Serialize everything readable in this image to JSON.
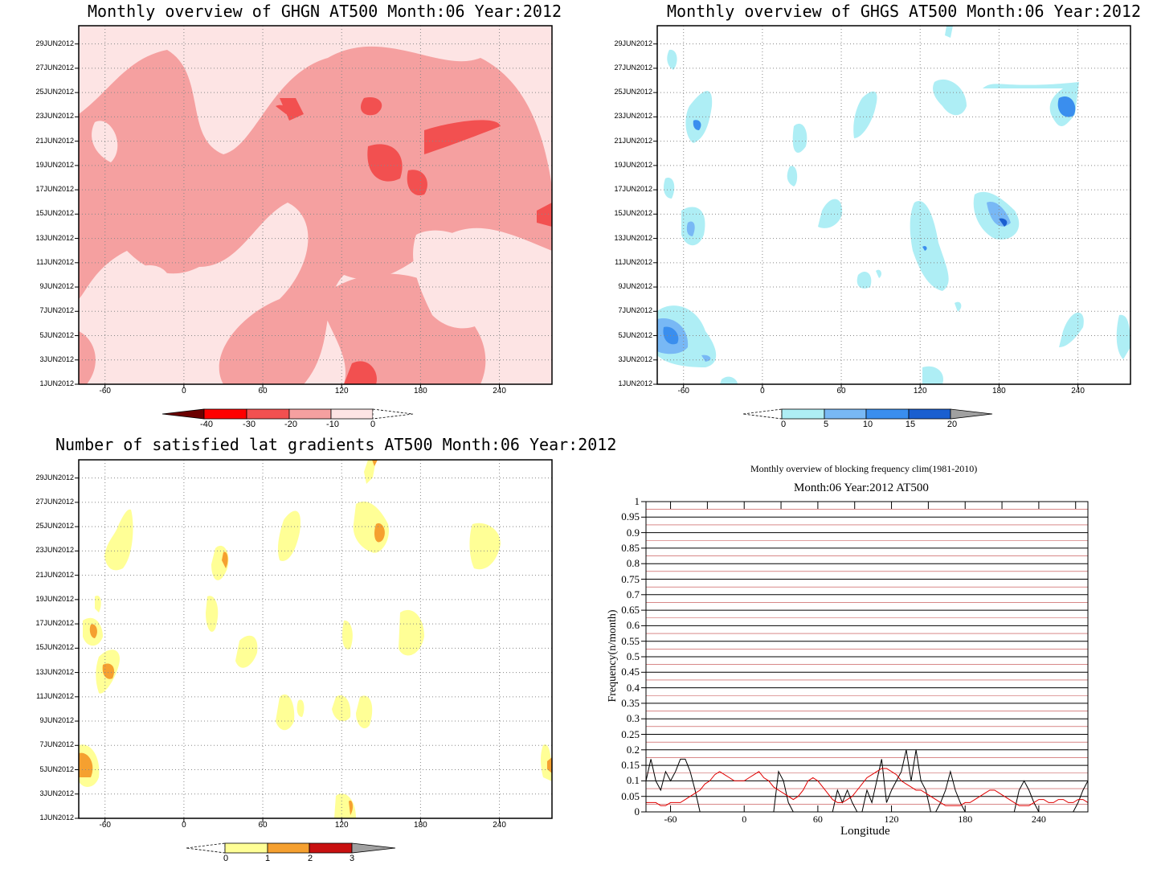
{
  "panels": {
    "ghgn": {
      "title": "Monthly overview of GHGN AT500 Month:06 Year:2012",
      "colorbar": {
        "ticks": [
          "-40",
          "-30",
          "-20",
          "-10",
          "0"
        ],
        "colors": [
          "#6b0000",
          "#ff0000",
          "#f25050",
          "#f5a0a0",
          "#fde4e4"
        ]
      }
    },
    "ghgs": {
      "title": "Monthly overview of GHGS AT500 Month:06 Year:2012",
      "colorbar": {
        "ticks": [
          "0",
          "5",
          "10",
          "15",
          "20"
        ],
        "colors": [
          "#aeeef5",
          "#78b8f5",
          "#3a8eee",
          "#1a5fd0",
          "#a0a0a0"
        ]
      }
    },
    "gradients": {
      "title": "Number of satisfied lat gradients AT500 Month:06 Year:2012",
      "colorbar": {
        "ticks": [
          "0",
          "1",
          "2",
          "3"
        ],
        "colors": [
          "#ffff96",
          "#f5a030",
          "#c81010",
          "#a0a0a0"
        ]
      }
    }
  },
  "shared_axes": {
    "y_dates": [
      "1JUN2012",
      "3JUN2012",
      "5JUN2012",
      "7JUN2012",
      "9JUN2012",
      "11JUN2012",
      "13JUN2012",
      "15JUN2012",
      "17JUN2012",
      "19JUN2012",
      "21JUN2012",
      "23JUN2012",
      "25JUN2012",
      "27JUN2012",
      "29JUN2012"
    ],
    "x_lons": [
      "-60",
      "0",
      "60",
      "120",
      "180",
      "240"
    ]
  },
  "freq": {
    "title": "Monthly overview of blocking frequency clim(1981-2010)",
    "subtitle": "Month:06 Year:2012  AT500",
    "xlabel": "Longitude",
    "ylabel": "Frequency(n/month)",
    "yticks": [
      "0",
      "0.05",
      "0.1",
      "0.15",
      "0.2",
      "0.25",
      "0.3",
      "0.35",
      "0.4",
      "0.45",
      "0.5",
      "0.55",
      "0.6",
      "0.65",
      "0.7",
      "0.75",
      "0.8",
      "0.85",
      "0.9",
      "0.95",
      "1"
    ],
    "xticks": [
      "-60",
      "0",
      "60",
      "120",
      "180",
      "240"
    ]
  },
  "chart_data": [
    {
      "type": "heatmap",
      "title": "Monthly overview of GHGN AT500 Month:06 Year:2012",
      "x_range": [
        -80,
        280
      ],
      "y_range": [
        "1JUN2012",
        "30JUN2012"
      ],
      "levels": [
        -40,
        -30,
        -20,
        -10,
        0
      ],
      "colors": [
        "#6b0000",
        "#ff0000",
        "#f25050",
        "#f5a0a0",
        "#fde4e4"
      ]
    },
    {
      "type": "heatmap",
      "title": "Monthly overview of GHGS AT500 Month:06 Year:2012",
      "x_range": [
        -80,
        280
      ],
      "y_range": [
        "1JUN2012",
        "30JUN2012"
      ],
      "levels": [
        0,
        5,
        10,
        15,
        20
      ],
      "colors": [
        "#aeeef5",
        "#78b8f5",
        "#3a8eee",
        "#1a5fd0",
        "#a0a0a0"
      ]
    },
    {
      "type": "heatmap",
      "title": "Number of satisfied lat gradients AT500 Month:06 Year:2012",
      "x_range": [
        -80,
        280
      ],
      "y_range": [
        "1JUN2012",
        "30JUN2012"
      ],
      "levels": [
        0,
        1,
        2,
        3
      ],
      "colors": [
        "#ffff96",
        "#f5a030",
        "#c81010",
        "#a0a0a0"
      ]
    },
    {
      "type": "line",
      "title": "Monthly overview of blocking frequency clim(1981-2010)",
      "subtitle": "Month:06 Year:2012  AT500",
      "xlabel": "Longitude",
      "ylabel": "Frequency(n/month)",
      "xlim": [
        -80,
        280
      ],
      "ylim": [
        0,
        1
      ],
      "series": [
        {
          "color": "#000000",
          "x": [
            -80,
            -76,
            -72,
            -68,
            -64,
            -60,
            -56,
            -52,
            -48,
            -44,
            -40,
            -36,
            -32,
            -28,
            -24,
            -20,
            -16,
            -12,
            -8,
            -4,
            0,
            4,
            8,
            12,
            16,
            20,
            24,
            28,
            32,
            36,
            40,
            44,
            48,
            52,
            56,
            60,
            64,
            68,
            72,
            76,
            80,
            84,
            88,
            92,
            96,
            100,
            104,
            108,
            112,
            116,
            120,
            124,
            128,
            132,
            136,
            140,
            144,
            148,
            152,
            156,
            160,
            164,
            168,
            172,
            176,
            180,
            184,
            188,
            192,
            196,
            200,
            204,
            208,
            212,
            216,
            220,
            224,
            228,
            232,
            236,
            240,
            244,
            248,
            252,
            256,
            260,
            264,
            268,
            272,
            276,
            280
          ],
          "y": [
            0.1,
            0.17,
            0.1,
            0.07,
            0.13,
            0.1,
            0.13,
            0.17,
            0.17,
            0.13,
            0.07,
            0,
            0,
            0,
            0,
            0,
            0,
            0,
            0,
            0,
            0,
            0,
            0,
            0,
            0,
            0,
            0,
            0.13,
            0.1,
            0.03,
            0,
            0,
            0,
            0,
            0,
            0,
            0,
            0,
            0,
            0.07,
            0.03,
            0.07,
            0.03,
            0,
            0,
            0.07,
            0.03,
            0.1,
            0.17,
            0.03,
            0.07,
            0.1,
            0.13,
            0.2,
            0.1,
            0.2,
            0.1,
            0.07,
            0,
            0,
            0.03,
            0.07,
            0.13,
            0.07,
            0.03,
            0,
            0,
            0,
            0,
            0,
            0,
            0,
            0,
            0,
            0,
            0,
            0.07,
            0.1,
            0.07,
            0.03,
            0,
            0,
            0,
            0,
            0,
            0,
            0,
            0,
            0.03,
            0.07,
            0.1
          ]
        },
        {
          "color": "#e00000",
          "x": [
            -80,
            -76,
            -72,
            -68,
            -64,
            -60,
            -56,
            -52,
            -48,
            -44,
            -40,
            -36,
            -32,
            -28,
            -24,
            -20,
            -16,
            -12,
            -8,
            -4,
            0,
            4,
            8,
            12,
            16,
            20,
            24,
            28,
            32,
            36,
            40,
            44,
            48,
            52,
            56,
            60,
            64,
            68,
            72,
            76,
            80,
            84,
            88,
            92,
            96,
            100,
            104,
            108,
            112,
            116,
            120,
            124,
            128,
            132,
            136,
            140,
            144,
            148,
            152,
            156,
            160,
            164,
            168,
            172,
            176,
            180,
            184,
            188,
            192,
            196,
            200,
            204,
            208,
            212,
            216,
            220,
            224,
            228,
            232,
            236,
            240,
            244,
            248,
            252,
            256,
            260,
            264,
            268,
            272,
            276,
            280
          ],
          "y": [
            0.03,
            0.03,
            0.03,
            0.02,
            0.02,
            0.03,
            0.03,
            0.03,
            0.04,
            0.05,
            0.06,
            0.07,
            0.09,
            0.1,
            0.12,
            0.13,
            0.12,
            0.11,
            0.1,
            0.1,
            0.1,
            0.11,
            0.12,
            0.13,
            0.11,
            0.1,
            0.08,
            0.07,
            0.06,
            0.05,
            0.04,
            0.05,
            0.07,
            0.1,
            0.11,
            0.1,
            0.08,
            0.06,
            0.04,
            0.03,
            0.03,
            0.04,
            0.05,
            0.07,
            0.09,
            0.11,
            0.12,
            0.13,
            0.14,
            0.14,
            0.13,
            0.12,
            0.1,
            0.09,
            0.08,
            0.07,
            0.07,
            0.06,
            0.05,
            0.04,
            0.03,
            0.02,
            0.02,
            0.02,
            0.02,
            0.03,
            0.03,
            0.04,
            0.05,
            0.06,
            0.07,
            0.07,
            0.06,
            0.05,
            0.04,
            0.03,
            0.02,
            0.02,
            0.02,
            0.03,
            0.04,
            0.04,
            0.03,
            0.03,
            0.04,
            0.04,
            0.03,
            0.03,
            0.04,
            0.04,
            0.03
          ]
        }
      ]
    }
  ]
}
